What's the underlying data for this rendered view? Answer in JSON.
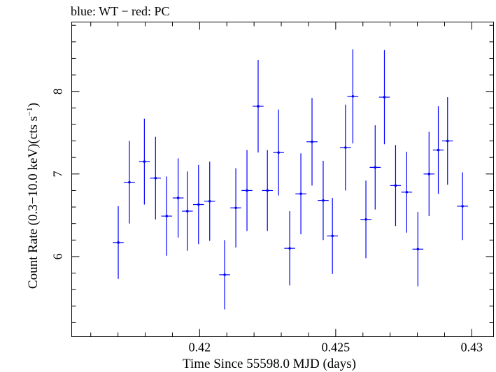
{
  "chart_data": {
    "type": "scatter",
    "title": "blue: WT − red: PC",
    "xlabel": "Time Since 55598.0 MJD (days)",
    "ylabel_main": "Count Rate (0.3−10.0 keV)(cts s",
    "ylabel_sup": "−1",
    "ylabel_end": ")",
    "xlim": [
      0.4153,
      0.4308
    ],
    "ylim": [
      5.03,
      8.84
    ],
    "x_ticks": [
      0.42,
      0.425,
      0.43
    ],
    "x_tick_labels": [
      "0.42",
      "0.425",
      "0.43"
    ],
    "y_ticks": [
      6,
      7,
      8
    ],
    "y_tick_labels": [
      "6",
      "7",
      "8"
    ],
    "series": [
      {
        "color": "#0000ff",
        "points": [
          {
            "x": 0.41701,
            "y": 6.17,
            "xerr": 0.0002,
            "yerr": 0.44
          },
          {
            "x": 0.41742,
            "y": 6.9,
            "xerr": 0.0002,
            "yerr": 0.5
          },
          {
            "x": 0.41797,
            "y": 7.15,
            "xerr": 0.0002,
            "yerr": 0.52
          },
          {
            "x": 0.41838,
            "y": 6.95,
            "xerr": 0.0002,
            "yerr": 0.5
          },
          {
            "x": 0.41879,
            "y": 6.49,
            "xerr": 0.0002,
            "yerr": 0.48
          },
          {
            "x": 0.41921,
            "y": 6.71,
            "xerr": 0.0002,
            "yerr": 0.48
          },
          {
            "x": 0.41955,
            "y": 6.55,
            "xerr": 0.0002,
            "yerr": 0.48
          },
          {
            "x": 0.41996,
            "y": 6.63,
            "xerr": 0.0002,
            "yerr": 0.48
          },
          {
            "x": 0.42037,
            "y": 6.67,
            "xerr": 0.0002,
            "yerr": 0.48
          },
          {
            "x": 0.42092,
            "y": 5.78,
            "xerr": 0.0002,
            "yerr": 0.42
          },
          {
            "x": 0.42133,
            "y": 6.59,
            "xerr": 0.0002,
            "yerr": 0.48
          },
          {
            "x": 0.42174,
            "y": 6.8,
            "xerr": 0.0002,
            "yerr": 0.49
          },
          {
            "x": 0.42215,
            "y": 7.82,
            "xerr": 0.0002,
            "yerr": 0.56
          },
          {
            "x": 0.42249,
            "y": 6.8,
            "xerr": 0.0002,
            "yerr": 0.49
          },
          {
            "x": 0.4229,
            "y": 7.26,
            "xerr": 0.0002,
            "yerr": 0.52
          },
          {
            "x": 0.42331,
            "y": 6.1,
            "xerr": 0.0002,
            "yerr": 0.45
          },
          {
            "x": 0.42372,
            "y": 6.76,
            "xerr": 0.0002,
            "yerr": 0.49
          },
          {
            "x": 0.42413,
            "y": 7.39,
            "xerr": 0.0002,
            "yerr": 0.53
          },
          {
            "x": 0.42454,
            "y": 6.68,
            "xerr": 0.0002,
            "yerr": 0.48
          },
          {
            "x": 0.42488,
            "y": 6.25,
            "xerr": 0.0002,
            "yerr": 0.46
          },
          {
            "x": 0.42536,
            "y": 7.32,
            "xerr": 0.0002,
            "yerr": 0.52
          },
          {
            "x": 0.42563,
            "y": 7.94,
            "xerr": 0.0002,
            "yerr": 0.57
          },
          {
            "x": 0.42611,
            "y": 6.45,
            "xerr": 0.0002,
            "yerr": 0.47
          },
          {
            "x": 0.42645,
            "y": 7.08,
            "xerr": 0.0002,
            "yerr": 0.51
          },
          {
            "x": 0.42679,
            "y": 7.93,
            "xerr": 0.0002,
            "yerr": 0.57
          },
          {
            "x": 0.4272,
            "y": 6.86,
            "xerr": 0.0002,
            "yerr": 0.49
          },
          {
            "x": 0.42761,
            "y": 6.78,
            "xerr": 0.0002,
            "yerr": 0.49
          },
          {
            "x": 0.42802,
            "y": 6.09,
            "xerr": 0.0002,
            "yerr": 0.45
          },
          {
            "x": 0.42843,
            "y": 7.0,
            "xerr": 0.0002,
            "yerr": 0.51
          },
          {
            "x": 0.42877,
            "y": 7.29,
            "xerr": 0.0002,
            "yerr": 0.53
          },
          {
            "x": 0.42911,
            "y": 7.4,
            "xerr": 0.0002,
            "yerr": 0.53
          },
          {
            "x": 0.42966,
            "y": 6.61,
            "xerr": 0.0002,
            "yerr": 0.41
          }
        ]
      }
    ]
  }
}
